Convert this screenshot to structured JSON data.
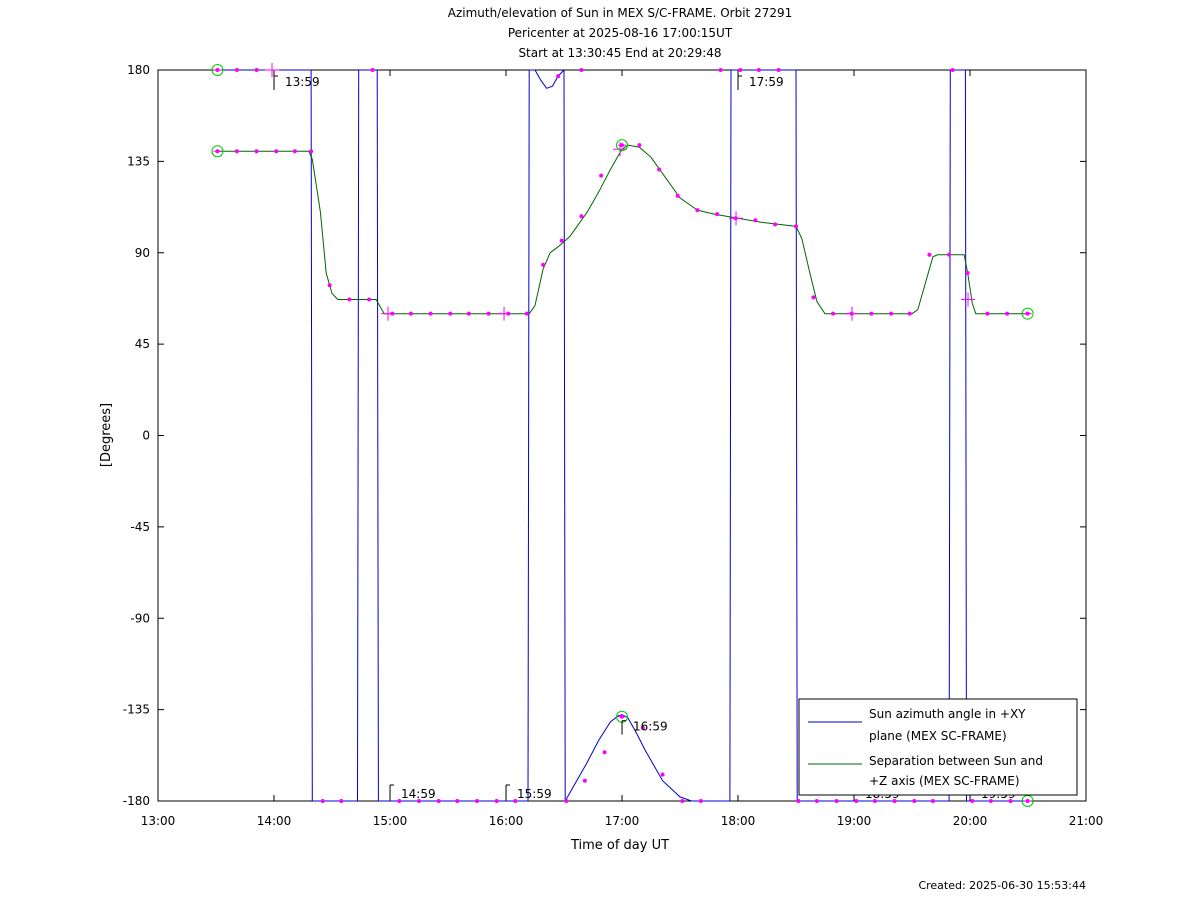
{
  "title_lines": [
    "Azimuth/elevation of Sun in MEX S/C-FRAME.  Orbit 27291",
    "Pericenter at 2025-08-16 17:00:15UT",
    "Start at 13:30:45 End at 20:29:48"
  ],
  "created": "Created: 2025-06-30 15:53:44",
  "chart_data": {
    "type": "line",
    "xlabel": "Time of day UT",
    "ylabel": "[Degrees]",
    "xlim": [
      13,
      21
    ],
    "ylim": [
      -180,
      180
    ],
    "xticks": [
      13,
      14,
      15,
      16,
      17,
      18,
      19,
      20,
      21
    ],
    "xtick_labels": [
      "13:00",
      "14:00",
      "15:00",
      "16:00",
      "17:00",
      "18:00",
      "19:00",
      "20:00",
      "21:00"
    ],
    "yticks": [
      180,
      135,
      90,
      45,
      0,
      -45,
      -90,
      -135,
      -180
    ],
    "ytick_labels": [
      "180",
      "135",
      "90",
      "45",
      "0",
      "-45",
      "-90",
      "-135",
      "-180"
    ],
    "legend_position": "bottom-right",
    "series": [
      {
        "name": "Sun azimuth angle in +XY plane (MEX SC-FRAME)",
        "legend_lines": [
          "Sun azimuth angle in +XY",
          "plane (MEX SC-FRAME)"
        ],
        "color": "#0000cc",
        "segments": [
          [
            [
              13.5125,
              180
            ],
            [
              14.32,
              180
            ]
          ],
          [
            [
              14.32,
              180
            ],
            [
              14.33,
              -180
            ]
          ],
          [
            [
              14.33,
              -180
            ],
            [
              14.72,
              -180
            ]
          ],
          [
            [
              14.72,
              -180
            ],
            [
              14.73,
              180
            ]
          ],
          [
            [
              14.73,
              180
            ],
            [
              14.89,
              180
            ]
          ],
          [
            [
              14.89,
              180
            ],
            [
              14.9,
              -180
            ]
          ],
          [
            [
              14.9,
              -180
            ],
            [
              16.19,
              -180
            ]
          ],
          [
            [
              16.19,
              -180
            ],
            [
              16.2,
              180
            ]
          ],
          [
            [
              16.2,
              180
            ],
            [
              16.25,
              180
            ],
            [
              16.3,
              175
            ],
            [
              16.35,
              171
            ],
            [
              16.4,
              172
            ],
            [
              16.45,
              177
            ],
            [
              16.5,
              180
            ]
          ],
          [
            [
              16.5,
              180
            ],
            [
              16.51,
              -180
            ]
          ],
          [
            [
              16.51,
              -180
            ],
            [
              16.6,
              -171
            ],
            [
              16.7,
              -161
            ],
            [
              16.8,
              -150
            ],
            [
              16.9,
              -141
            ],
            [
              16.97,
              -138
            ],
            [
              17.0,
              -137.5
            ],
            [
              17.05,
              -139
            ],
            [
              17.12,
              -146
            ],
            [
              17.2,
              -155
            ],
            [
              17.35,
              -170
            ],
            [
              17.5,
              -178
            ],
            [
              17.6,
              -180
            ],
            [
              17.93,
              -180
            ]
          ],
          [
            [
              17.93,
              -180
            ],
            [
              17.94,
              180
            ]
          ],
          [
            [
              17.94,
              180
            ],
            [
              18.5,
              180
            ]
          ],
          [
            [
              18.5,
              180
            ],
            [
              18.51,
              -180
            ]
          ],
          [
            [
              18.51,
              -180
            ],
            [
              19.82,
              -180
            ]
          ],
          [
            [
              19.82,
              -180
            ],
            [
              19.83,
              180
            ]
          ],
          [
            [
              19.83,
              180
            ],
            [
              19.96,
              180
            ]
          ],
          [
            [
              19.96,
              180
            ],
            [
              19.97,
              -180
            ]
          ],
          [
            [
              19.97,
              -180
            ],
            [
              20.4967,
              -180
            ]
          ]
        ]
      },
      {
        "name": "Separation between Sun and +Z axis (MEX SC-FRAME)",
        "legend_lines": [
          "Separation between Sun and",
          "+Z axis (MEX SC-FRAME)"
        ],
        "color": "#006600",
        "points": [
          [
            13.5125,
            140
          ],
          [
            14.3,
            140
          ],
          [
            14.33,
            136
          ],
          [
            14.4,
            110
          ],
          [
            14.45,
            80
          ],
          [
            14.5,
            70
          ],
          [
            14.55,
            67
          ],
          [
            14.88,
            67
          ],
          [
            14.95,
            60
          ],
          [
            16.2,
            60
          ],
          [
            16.25,
            64
          ],
          [
            16.32,
            82
          ],
          [
            16.38,
            90
          ],
          [
            16.45,
            93
          ],
          [
            16.55,
            98
          ],
          [
            16.6,
            102
          ],
          [
            16.7,
            110
          ],
          [
            16.8,
            120
          ],
          [
            16.9,
            131
          ],
          [
            17.0,
            141
          ],
          [
            17.05,
            143
          ],
          [
            17.15,
            142
          ],
          [
            17.25,
            137
          ],
          [
            17.35,
            129
          ],
          [
            17.5,
            117
          ],
          [
            17.65,
            111
          ],
          [
            17.8,
            109
          ],
          [
            18.0,
            107
          ],
          [
            18.2,
            105
          ],
          [
            18.5,
            103
          ],
          [
            18.55,
            97
          ],
          [
            18.62,
            80
          ],
          [
            18.68,
            66
          ],
          [
            18.75,
            60
          ],
          [
            19.5,
            60
          ],
          [
            19.55,
            62
          ],
          [
            19.62,
            76
          ],
          [
            19.68,
            88
          ],
          [
            19.72,
            89
          ],
          [
            19.95,
            89
          ],
          [
            19.98,
            80
          ],
          [
            20.02,
            65
          ],
          [
            20.05,
            60
          ],
          [
            20.4967,
            60
          ]
        ]
      }
    ],
    "sample_markers": {
      "color": "#ff00ff",
      "azimuth": [
        [
          13.5125,
          180
        ],
        [
          13.68,
          180
        ],
        [
          13.85,
          180
        ],
        [
          14.85,
          180
        ],
        [
          16.45,
          177
        ],
        [
          16.65,
          180
        ],
        [
          17.85,
          180
        ],
        [
          18.02,
          180
        ],
        [
          18.18,
          180
        ],
        [
          18.35,
          180
        ],
        [
          19.85,
          180
        ],
        [
          14.42,
          -180
        ],
        [
          14.58,
          -180
        ],
        [
          15.08,
          -180
        ],
        [
          15.25,
          -180
        ],
        [
          15.42,
          -180
        ],
        [
          15.58,
          -180
        ],
        [
          15.75,
          -180
        ],
        [
          15.92,
          -180
        ],
        [
          16.08,
          -180
        ],
        [
          16.52,
          -180
        ],
        [
          16.68,
          -170
        ],
        [
          16.85,
          -156
        ],
        [
          17.0,
          -138.5
        ],
        [
          17.18,
          -144
        ],
        [
          17.35,
          -167
        ],
        [
          17.52,
          -180
        ],
        [
          17.68,
          -180
        ],
        [
          18.52,
          -180
        ],
        [
          18.68,
          -180
        ],
        [
          18.85,
          -180
        ],
        [
          19.02,
          -180
        ],
        [
          19.18,
          -180
        ],
        [
          19.35,
          -180
        ],
        [
          19.52,
          -180
        ],
        [
          19.68,
          -180
        ],
        [
          20.02,
          -180
        ],
        [
          20.18,
          -180
        ],
        [
          20.35,
          -180
        ],
        [
          20.4967,
          -180
        ]
      ],
      "separation": [
        [
          13.5125,
          140
        ],
        [
          13.68,
          140
        ],
        [
          13.85,
          140
        ],
        [
          14.02,
          140
        ],
        [
          14.18,
          140
        ],
        [
          14.32,
          140
        ],
        [
          14.48,
          74
        ],
        [
          14.65,
          67
        ],
        [
          14.82,
          67
        ],
        [
          15.02,
          60
        ],
        [
          15.18,
          60
        ],
        [
          15.35,
          60
        ],
        [
          15.52,
          60
        ],
        [
          15.68,
          60
        ],
        [
          15.85,
          60
        ],
        [
          16.02,
          60
        ],
        [
          16.18,
          60
        ],
        [
          16.32,
          84
        ],
        [
          16.48,
          96
        ],
        [
          16.65,
          108
        ],
        [
          16.82,
          128
        ],
        [
          17.0,
          143
        ],
        [
          17.15,
          143
        ],
        [
          17.32,
          131
        ],
        [
          17.48,
          118
        ],
        [
          17.65,
          111
        ],
        [
          17.82,
          109
        ],
        [
          17.98,
          107
        ],
        [
          18.15,
          106
        ],
        [
          18.32,
          104
        ],
        [
          18.5,
          103
        ],
        [
          18.65,
          68
        ],
        [
          18.82,
          60
        ],
        [
          18.98,
          60
        ],
        [
          19.15,
          60
        ],
        [
          19.32,
          60
        ],
        [
          19.48,
          60
        ],
        [
          19.65,
          89
        ],
        [
          19.82,
          89
        ],
        [
          19.98,
          80
        ],
        [
          20.15,
          60
        ],
        [
          20.32,
          60
        ],
        [
          20.4967,
          60
        ]
      ]
    },
    "hour_markers": [
      {
        "label": "13:59",
        "x": 13.983,
        "y": 180,
        "side": "below"
      },
      {
        "label": "14:59",
        "x": 14.983,
        "y": -180,
        "side": "above"
      },
      {
        "label": "15:59",
        "x": 15.983,
        "y": -180,
        "side": "above"
      },
      {
        "label": "16:59",
        "x": 16.983,
        "y": -137.5,
        "side": "below"
      },
      {
        "label": "17:59",
        "x": 17.983,
        "y": 180,
        "side": "below"
      },
      {
        "label": "18:59",
        "x": 18.983,
        "y": -180,
        "side": "above"
      },
      {
        "label": "19:59",
        "x": 19.983,
        "y": -180,
        "side": "above"
      }
    ],
    "plus_markers": [
      [
        13.983,
        180
      ],
      [
        14.983,
        60
      ],
      [
        15.983,
        60
      ],
      [
        16.983,
        141
      ],
      [
        17.983,
        107
      ],
      [
        18.983,
        60
      ],
      [
        19.983,
        67
      ]
    ],
    "circle_markers": [
      [
        13.5125,
        180
      ],
      [
        13.5125,
        140
      ],
      [
        17.0,
        143
      ],
      [
        17.0,
        -138.5
      ],
      [
        20.4967,
        60
      ],
      [
        20.4967,
        -180
      ]
    ]
  }
}
